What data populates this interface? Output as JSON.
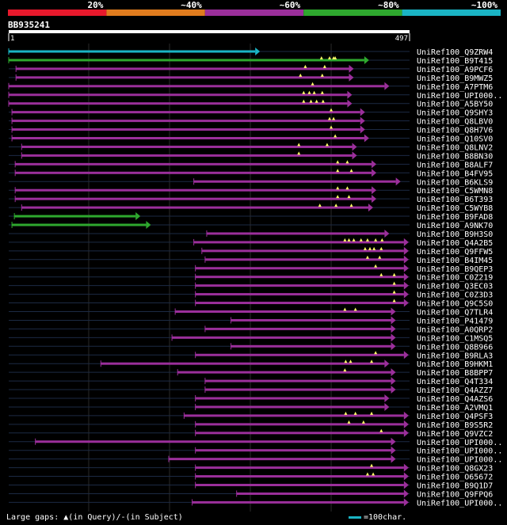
{
  "chart_data": {
    "type": "alignment-overview",
    "query": {
      "name": "BB935241",
      "start": 1,
      "end": 497
    },
    "identity_legend": [
      {
        "label": "20%",
        "color": "#e8192c"
      },
      {
        "label": "~40%",
        "color": "#e07c1e"
      },
      {
        "label": "~60%",
        "color": "#9b2f9b"
      },
      {
        "label": "~80%",
        "color": "#2ea82e"
      },
      {
        "label": "~100%",
        "color": "#1ab4c4"
      }
    ],
    "hits": [
      {
        "name": "UniRef100_Q9ZRW4",
        "start": 1,
        "end": 306,
        "id": "~100%",
        "gaps": []
      },
      {
        "name": "UniRef100_B9T415",
        "start": 1,
        "end": 441,
        "id": "~80%",
        "gaps": [
          388,
          398,
          403,
          405
        ]
      },
      {
        "name": "UniRef100_A9PCF6",
        "start": 10,
        "end": 422,
        "id": "~60%",
        "gaps": [
          368,
          392
        ]
      },
      {
        "name": "UniRef100_B9MWZ5",
        "start": 10,
        "end": 422,
        "id": "~60%",
        "gaps": [
          362,
          389
        ]
      },
      {
        "name": "UniRef100_A7PTM6",
        "start": 1,
        "end": 466,
        "id": "~60%",
        "gaps": [
          377
        ]
      },
      {
        "name": "UniRef100_UPI000..",
        "start": 1,
        "end": 420,
        "id": "~60%",
        "gaps": [
          366,
          373,
          379,
          389
        ]
      },
      {
        "name": "UniRef100_A5BY50",
        "start": 1,
        "end": 420,
        "id": "~60%",
        "gaps": [
          366,
          375,
          382,
          390
        ]
      },
      {
        "name": "UniRef100_Q9SHY3",
        "start": 5,
        "end": 436,
        "id": "~60%",
        "gaps": [
          400
        ]
      },
      {
        "name": "UniRef100_Q8LBV0",
        "start": 5,
        "end": 436,
        "id": "~60%",
        "gaps": [
          398,
          403
        ]
      },
      {
        "name": "UniRef100_Q8H7V6",
        "start": 5,
        "end": 436,
        "id": "~60%",
        "gaps": [
          400
        ]
      },
      {
        "name": "UniRef100_Q10SV0",
        "start": 5,
        "end": 441,
        "id": "~60%",
        "gaps": [
          405
        ]
      },
      {
        "name": "UniRef100_Q8LNV2",
        "start": 17,
        "end": 426,
        "id": "~60%",
        "gaps": [
          360,
          395
        ]
      },
      {
        "name": "UniRef100_B8BN30",
        "start": 17,
        "end": 426,
        "id": "~60%",
        "gaps": [
          360
        ]
      },
      {
        "name": "UniRef100_B8ALF7",
        "start": 9,
        "end": 450,
        "id": "~60%",
        "gaps": [
          408,
          420
        ]
      },
      {
        "name": "UniRef100_B4FV95",
        "start": 9,
        "end": 450,
        "id": "~60%",
        "gaps": [
          408,
          425
        ]
      },
      {
        "name": "UniRef100_B6KLS9",
        "start": 230,
        "end": 480,
        "id": "~60%",
        "gaps": []
      },
      {
        "name": "UniRef100_C5WMN8",
        "start": 9,
        "end": 450,
        "id": "~60%",
        "gaps": [
          408,
          420
        ]
      },
      {
        "name": "UniRef100_B6T393",
        "start": 9,
        "end": 450,
        "id": "~60%",
        "gaps": [
          408,
          422
        ]
      },
      {
        "name": "UniRef100_C5WYB8",
        "start": 17,
        "end": 446,
        "id": "~60%",
        "gaps": [
          386,
          406,
          425
        ]
      },
      {
        "name": "UniRef100_B9FAD8",
        "start": 8,
        "end": 158,
        "id": "~80%",
        "gaps": []
      },
      {
        "name": "UniRef100_A9NK70",
        "start": 5,
        "end": 171,
        "id": "~80%",
        "gaps": []
      },
      {
        "name": "UniRef100_B9H3S0",
        "start": 246,
        "end": 466,
        "id": "~60%",
        "gaps": []
      },
      {
        "name": "UniRef100_Q4A2B5",
        "start": 230,
        "end": 490,
        "id": "~60%",
        "gaps": [
          417,
          422,
          428,
          437,
          445,
          455,
          463
        ]
      },
      {
        "name": "UniRef100_Q9FFW5",
        "start": 240,
        "end": 490,
        "id": "~60%",
        "gaps": [
          442,
          448,
          453,
          462
        ]
      },
      {
        "name": "UniRef100_B4IM45",
        "start": 244,
        "end": 490,
        "id": "~60%",
        "gaps": [
          445,
          460
        ]
      },
      {
        "name": "UniRef100_B9QEP3",
        "start": 232,
        "end": 490,
        "id": "~60%",
        "gaps": [
          455
        ]
      },
      {
        "name": "UniRef100_C0Z219",
        "start": 232,
        "end": 490,
        "id": "~60%",
        "gaps": [
          462,
          478
        ]
      },
      {
        "name": "UniRef100_Q3EC03",
        "start": 232,
        "end": 490,
        "id": "~60%",
        "gaps": [
          478
        ]
      },
      {
        "name": "UniRef100_C0Z3D3",
        "start": 232,
        "end": 490,
        "id": "~60%",
        "gaps": [
          478
        ]
      },
      {
        "name": "UniRef100_Q9C5S0",
        "start": 232,
        "end": 490,
        "id": "~60%",
        "gaps": [
          478
        ]
      },
      {
        "name": "UniRef100_Q7TLR4",
        "start": 207,
        "end": 474,
        "id": "~60%",
        "gaps": [
          417,
          430
        ]
      },
      {
        "name": "UniRef100_P41479",
        "start": 276,
        "end": 474,
        "id": "~60%",
        "gaps": []
      },
      {
        "name": "UniRef100_A0QRP2",
        "start": 244,
        "end": 474,
        "id": "~60%",
        "gaps": []
      },
      {
        "name": "UniRef100_C1MSQ5",
        "start": 203,
        "end": 474,
        "id": "~60%",
        "gaps": []
      },
      {
        "name": "UniRef100_Q8B966",
        "start": 276,
        "end": 474,
        "id": "~60%",
        "gaps": []
      },
      {
        "name": "UniRef100_B9RLA3",
        "start": 232,
        "end": 490,
        "id": "~60%",
        "gaps": [
          455
        ]
      },
      {
        "name": "UniRef100_B9HKM1",
        "start": 115,
        "end": 466,
        "id": "~60%",
        "gaps": [
          418,
          424,
          450
        ]
      },
      {
        "name": "UniRef100_B8BPP7",
        "start": 210,
        "end": 474,
        "id": "~60%",
        "gaps": [
          417
        ]
      },
      {
        "name": "UniRef100_Q4T334",
        "start": 244,
        "end": 474,
        "id": "~60%",
        "gaps": []
      },
      {
        "name": "UniRef100_Q4AZZ7",
        "start": 244,
        "end": 474,
        "id": "~60%",
        "gaps": []
      },
      {
        "name": "UniRef100_Q4AZS6",
        "start": 232,
        "end": 466,
        "id": "~60%",
        "gaps": []
      },
      {
        "name": "UniRef100_A2VMQ1",
        "start": 232,
        "end": 466,
        "id": "~60%",
        "gaps": []
      },
      {
        "name": "UniRef100_Q4PSF3",
        "start": 218,
        "end": 490,
        "id": "~60%",
        "gaps": [
          418,
          430,
          450
        ]
      },
      {
        "name": "UniRef100_B9S5R2",
        "start": 232,
        "end": 490,
        "id": "~60%",
        "gaps": [
          422,
          440
        ]
      },
      {
        "name": "UniRef100_Q9VZC2",
        "start": 232,
        "end": 490,
        "id": "~60%",
        "gaps": [
          462
        ]
      },
      {
        "name": "UniRef100_UPI000..",
        "start": 34,
        "end": 474,
        "id": "~60%",
        "gaps": []
      },
      {
        "name": "UniRef100_UPI000..",
        "start": 232,
        "end": 474,
        "id": "~60%",
        "gaps": []
      },
      {
        "name": "UniRef100_UPI000..",
        "start": 199,
        "end": 474,
        "id": "~60%",
        "gaps": []
      },
      {
        "name": "UniRef100_Q8GX23",
        "start": 232,
        "end": 490,
        "id": "~60%",
        "gaps": [
          450
        ]
      },
      {
        "name": "UniRef100_O65672",
        "start": 232,
        "end": 490,
        "id": "~60%",
        "gaps": [
          445,
          452
        ]
      },
      {
        "name": "UniRef100_B9Q1D7",
        "start": 232,
        "end": 490,
        "id": "~60%",
        "gaps": []
      },
      {
        "name": "UniRef100_Q9FPQ6",
        "start": 283,
        "end": 490,
        "id": "~60%",
        "gaps": []
      },
      {
        "name": "UniRef100_UPI000..",
        "start": 228,
        "end": 490,
        "id": "~60%",
        "gaps": []
      }
    ]
  },
  "footer": {
    "gaps_prefix": "Large gaps:",
    "gaps_query": "(in Query)/-",
    "gaps_subject": "(in Subject)",
    "scale_label": "=100char."
  }
}
